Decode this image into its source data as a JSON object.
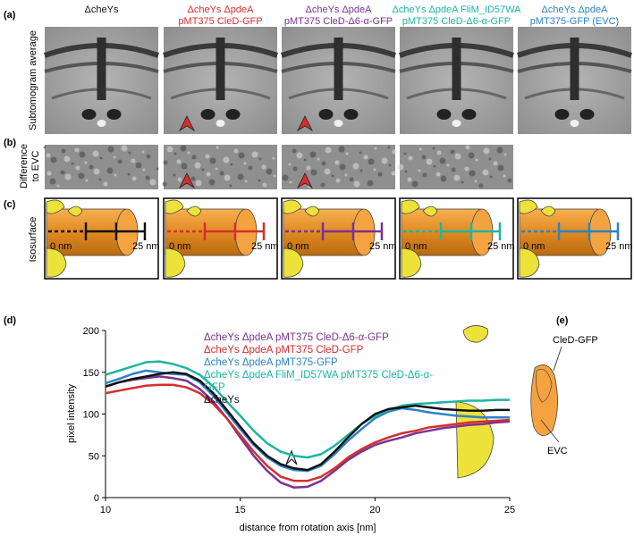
{
  "panel_labels": [
    "(a)",
    "(b)",
    "(c)",
    "(d)",
    "(e)"
  ],
  "column_headers": [
    {
      "lines": [
        "ΔcheYs"
      ],
      "color": "#111111"
    },
    {
      "lines": [
        "ΔcheYs ΔpdeA",
        "pMT375 CleD-GFP"
      ],
      "color": "#d32f2f"
    },
    {
      "lines": [
        "ΔcheYs ΔpdeA",
        "pMT375 CleD-Δ6-α-GFP"
      ],
      "color": "#7b3294"
    },
    {
      "lines": [
        "ΔcheYs ΔpdeA FliM_ID57WA",
        "pMT375 CleD-Δ6-α-GFP"
      ],
      "color": "#1db5a3"
    },
    {
      "lines": [
        "ΔcheYs ΔpdeA",
        "pMT375-GFP (EVC)"
      ],
      "color": "#2b83c6"
    }
  ],
  "row_labels": {
    "a": [
      "Subtomogram average"
    ],
    "b": [
      "Difference",
      "to EVC"
    ],
    "c": [
      "Isosurface"
    ]
  },
  "scale_labels": [
    "0 nm",
    "25 nm"
  ],
  "chart_data": {
    "type": "line",
    "xlabel": "distance from rotation axis [nm]",
    "ylabel": "pixel intensity",
    "xlim": [
      10,
      25
    ],
    "ylim": [
      0,
      200
    ],
    "xticks": [
      10,
      15,
      20,
      25
    ],
    "yticks": [
      0,
      50,
      100,
      150,
      200
    ],
    "x": [
      10,
      10.5,
      11,
      11.5,
      12,
      12.5,
      13,
      13.5,
      14,
      14.5,
      15,
      15.5,
      16,
      16.5,
      17,
      17.5,
      18,
      18.5,
      19,
      19.5,
      20,
      20.5,
      21,
      21.5,
      22,
      22.5,
      23,
      23.5,
      24,
      24.5,
      25
    ],
    "series": [
      {
        "name": "ΔcheYs ΔpdeA pMT375 CleD-Δ6-α-GFP",
        "color": "#7b3294",
        "values": [
          133,
          138,
          141,
          143,
          145,
          143,
          140,
          130,
          115,
          95,
          72,
          50,
          32,
          18,
          12,
          13,
          20,
          32,
          45,
          55,
          63,
          68,
          72,
          77,
          80,
          83,
          85,
          87,
          88,
          90,
          91
        ]
      },
      {
        "name": "ΔcheYs ΔpdeA pMT375 CleD-GFP",
        "color": "#d32f2f",
        "values": [
          125,
          128,
          131,
          134,
          135,
          135,
          132,
          125,
          112,
          95,
          75,
          55,
          38,
          25,
          20,
          20,
          25,
          35,
          48,
          58,
          66,
          72,
          77,
          80,
          84,
          86,
          88,
          90,
          91,
          92,
          93
        ]
      },
      {
        "name": "ΔcheYs ΔpdeA pMT375-GFP",
        "color": "#2b83c6",
        "values": [
          137,
          142,
          148,
          152,
          150,
          148,
          147,
          138,
          122,
          102,
          82,
          63,
          48,
          38,
          33,
          32,
          38,
          52,
          68,
          82,
          95,
          103,
          107,
          105,
          102,
          100,
          98,
          97,
          96,
          96,
          96
        ]
      },
      {
        "name": "ΔcheYs ΔpdeA FliM_ID57WA pMT375 CleD-Δ6-α-GFP",
        "color": "#1db5a3",
        "values": [
          147,
          152,
          157,
          162,
          163,
          160,
          155,
          147,
          133,
          115,
          98,
          80,
          65,
          55,
          50,
          48,
          52,
          62,
          75,
          88,
          98,
          105,
          110,
          112,
          113,
          114,
          115,
          116,
          116,
          117,
          117
        ]
      },
      {
        "name": "ΔcheYs",
        "color": "#111111",
        "values": [
          133,
          138,
          142,
          145,
          148,
          150,
          148,
          140,
          125,
          105,
          85,
          65,
          50,
          40,
          35,
          33,
          40,
          55,
          72,
          88,
          100,
          106,
          108,
          110,
          108,
          106,
          105,
          104,
          104,
          105,
          105
        ]
      }
    ]
  },
  "panel_e": {
    "labels": [
      "CleD-GFP",
      "EVC"
    ]
  }
}
